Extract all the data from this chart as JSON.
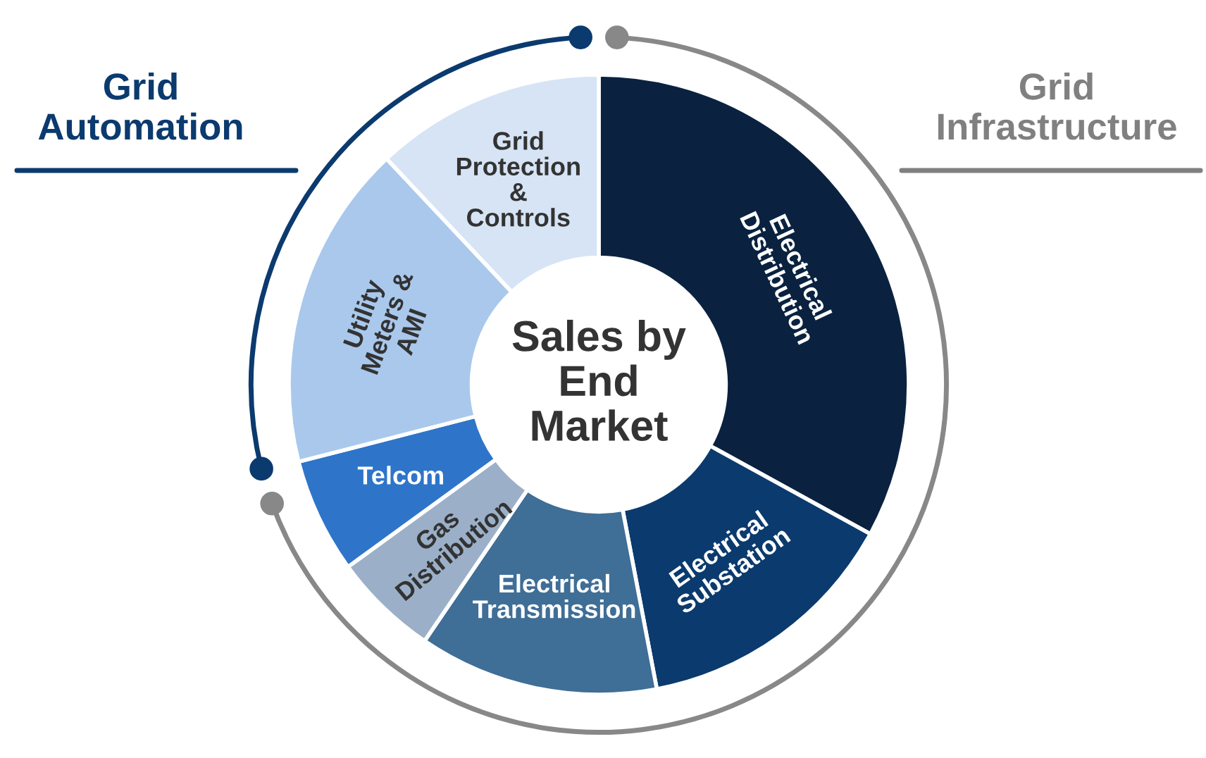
{
  "chart_data": {
    "type": "donut",
    "title": "Sales by\nEnd\nMarket",
    "categories": [
      "Electrical\nDistribution",
      "Electrical\nSubstation",
      "Electrical\nTransmission",
      "Gas\nDistribution",
      "Telcom",
      "Utility\nMeters &\nAMI",
      "Grid\nProtection\n&\nControls"
    ],
    "values": [
      33,
      14,
      12.5,
      5.5,
      6,
      17,
      12
    ],
    "colors": [
      "#0a2240",
      "#0b3a6e",
      "#3f6e96",
      "#9bb0c8",
      "#2e75c9",
      "#a9c8ec",
      "#d6e4f5"
    ],
    "annotations": [
      "Grid\nAutomation",
      "Grid\nInfrastructure"
    ],
    "legend": false
  }
}
